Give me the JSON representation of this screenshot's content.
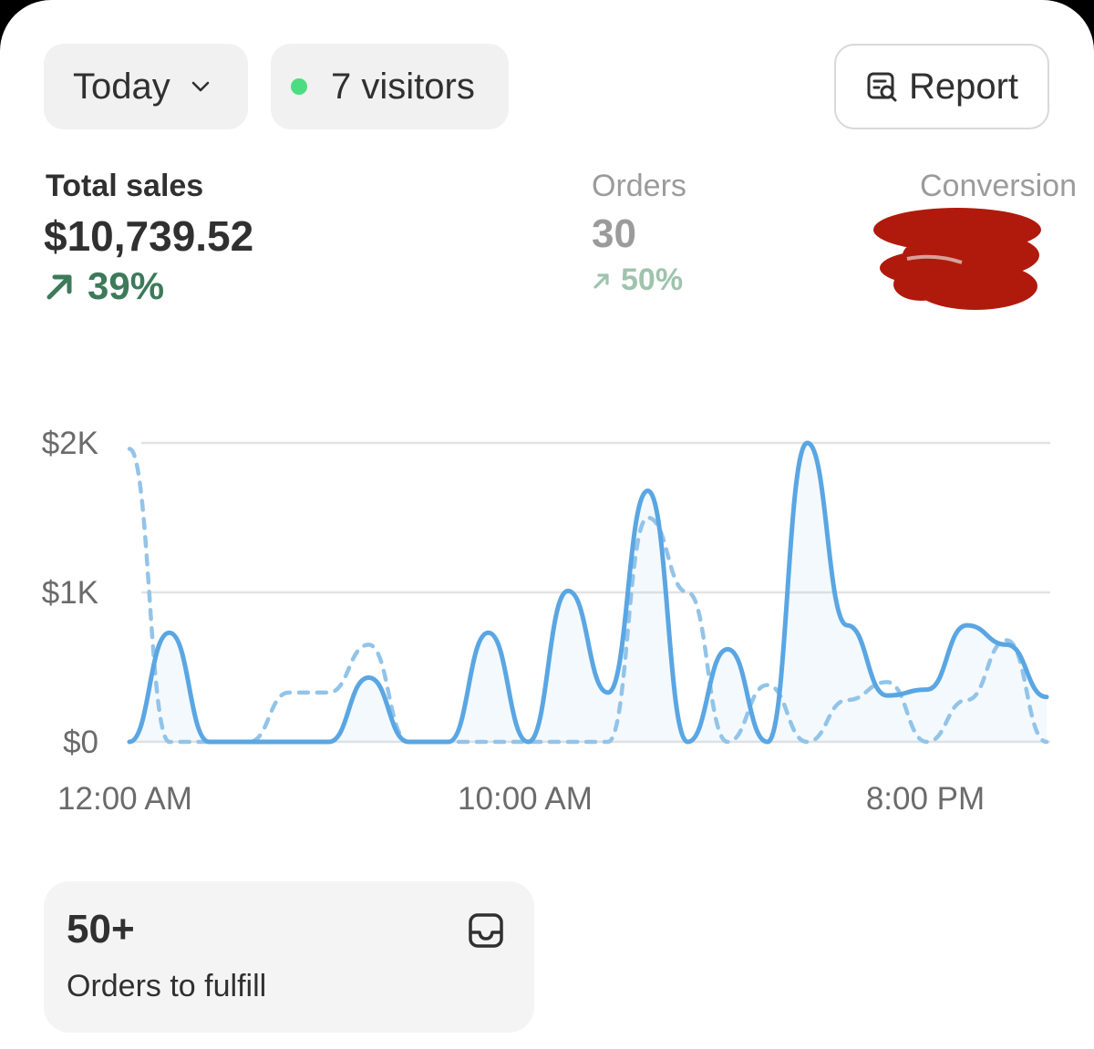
{
  "filters": {
    "date_label": "Today",
    "visitors_label": "7 visitors",
    "visitors_dot_color": "#4ade80"
  },
  "report_button": {
    "label": "Report",
    "icon": "report-search-icon"
  },
  "metrics": {
    "total_sales": {
      "label": "Total sales",
      "value": "$10,739.52",
      "change": "39%",
      "direction": "up"
    },
    "orders": {
      "label": "Orders",
      "value": "30",
      "change": "50%",
      "direction": "up"
    },
    "conversion": {
      "label": "Conversion",
      "value_redacted": true
    }
  },
  "chart_data": {
    "type": "line",
    "x_tick_labels": [
      "12:00 AM",
      "10:00 AM",
      "8:00 PM"
    ],
    "y_tick_labels": [
      "$2K",
      "$1K",
      "$0"
    ],
    "ylim": [
      0,
      2000
    ],
    "grid": true,
    "x_range_hours": [
      0,
      23
    ],
    "series": [
      {
        "style": "solid",
        "color": "#5aa6e3",
        "points": [
          [
            0,
            0
          ],
          [
            1,
            730
          ],
          [
            2,
            0
          ],
          [
            3,
            0
          ],
          [
            4,
            0
          ],
          [
            5,
            0
          ],
          [
            6,
            430
          ],
          [
            7,
            0
          ],
          [
            8,
            0
          ],
          [
            9,
            730
          ],
          [
            10,
            0
          ],
          [
            11,
            1010
          ],
          [
            12,
            330
          ],
          [
            13,
            1680
          ],
          [
            14,
            0
          ],
          [
            15,
            620
          ],
          [
            16,
            0
          ],
          [
            17,
            2000
          ],
          [
            18,
            780
          ],
          [
            19,
            310
          ],
          [
            20,
            350
          ],
          [
            21,
            780
          ],
          [
            22,
            650
          ],
          [
            23,
            300
          ]
        ]
      },
      {
        "style": "dashed",
        "color": "#93c4e8",
        "points": [
          [
            0,
            1960
          ],
          [
            1,
            0
          ],
          [
            2,
            0
          ],
          [
            3,
            0
          ],
          [
            4,
            330
          ],
          [
            5,
            330
          ],
          [
            6,
            650
          ],
          [
            7,
            0
          ],
          [
            8,
            0
          ],
          [
            9,
            0
          ],
          [
            10,
            0
          ],
          [
            11,
            0
          ],
          [
            12,
            0
          ],
          [
            13,
            1500
          ],
          [
            14,
            1000
          ],
          [
            15,
            0
          ],
          [
            16,
            380
          ],
          [
            17,
            0
          ],
          [
            18,
            280
          ],
          [
            19,
            400
          ],
          [
            20,
            0
          ],
          [
            21,
            280
          ],
          [
            22,
            680
          ],
          [
            23,
            0
          ]
        ]
      }
    ]
  },
  "fulfill_tile": {
    "count": "50+",
    "label": "Orders to fulfill",
    "icon": "inbox-icon"
  }
}
